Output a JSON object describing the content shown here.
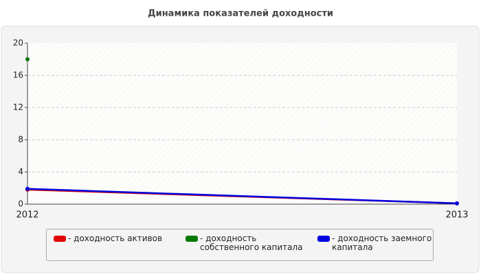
{
  "chart_data": {
    "type": "line",
    "title": "Динамика показателей доходности",
    "categories": [
      "2012",
      "2013"
    ],
    "series": [
      {
        "name": "- доходность активов",
        "color": "#e00000",
        "values": [
          1.8,
          0.1
        ]
      },
      {
        "name": "- доходность собственного капитала",
        "color": "#007a00",
        "values": [
          18,
          null
        ]
      },
      {
        "name": "- доходность заемного капитала",
        "color": "#0000e0",
        "values": [
          1.9,
          0.1
        ]
      }
    ],
    "ylim": [
      0,
      20
    ],
    "yticks": [
      0,
      4,
      8,
      12,
      16,
      20
    ],
    "grid": true
  }
}
